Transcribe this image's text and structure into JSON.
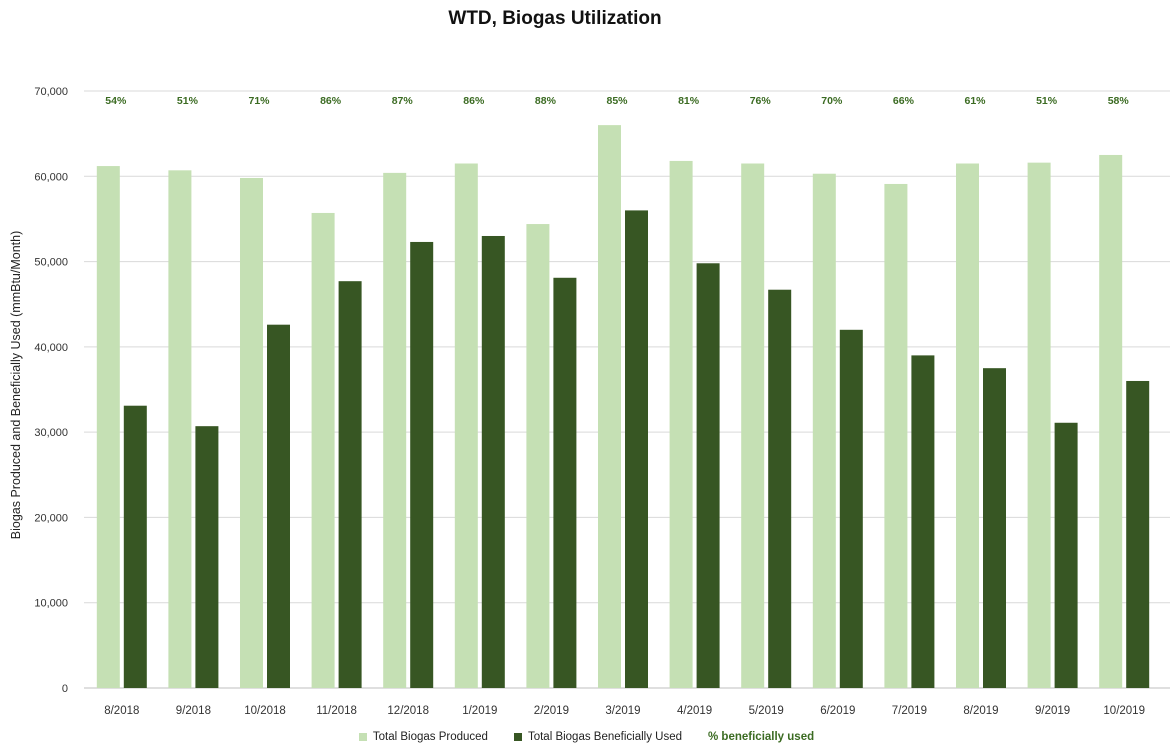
{
  "chart_data": {
    "type": "bar",
    "title": "WTD, Biogas Utilization",
    "ylabel": "Biogas Produced and Beneficially Used (mmBtu/Month)",
    "xlabel": "",
    "ylim": [
      0,
      70000
    ],
    "yticks": [
      0,
      10000,
      20000,
      30000,
      40000,
      50000,
      60000,
      70000
    ],
    "ytick_labels": [
      "0",
      "10,000",
      "20,000",
      "30,000",
      "40,000",
      "50,000",
      "60,000",
      "70,000"
    ],
    "grid": true,
    "legend_position": "bottom",
    "categories": [
      "8/2018",
      "9/2018",
      "10/2018",
      "11/2018",
      "12/2018",
      "1/2019",
      "2/2019",
      "3/2019",
      "4/2019",
      "5/2019",
      "6/2019",
      "7/2019",
      "8/2019",
      "9/2019",
      "10/2019"
    ],
    "series": [
      {
        "name": "Total Biogas Produced",
        "color": "#c5e0b4",
        "values": [
          61200,
          60700,
          59800,
          55700,
          60400,
          61500,
          54400,
          66000,
          61800,
          61500,
          60300,
          59100,
          61500,
          61600,
          62500
        ]
      },
      {
        "name": "Total Biogas Beneficially Used",
        "color": "#375623",
        "values": [
          33100,
          30700,
          42600,
          47700,
          52300,
          53000,
          48100,
          56000,
          49800,
          46700,
          42000,
          39000,
          37500,
          31100,
          36000
        ]
      }
    ],
    "percent_series": {
      "name": "% beneficially used",
      "color": "#3b6b22",
      "labels": [
        "54%",
        "51%",
        "71%",
        "86%",
        "87%",
        "86%",
        "88%",
        "85%",
        "81%",
        "76%",
        "70%",
        "66%",
        "61%",
        "51%",
        "58%"
      ]
    }
  }
}
